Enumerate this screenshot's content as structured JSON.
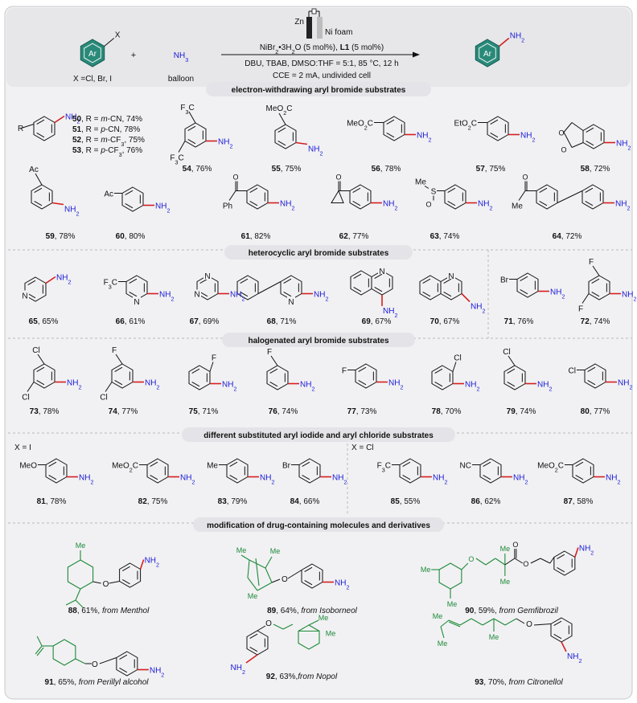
{
  "scheme": {
    "reactant": {
      "ring": "Ar",
      "substituent": "X",
      "note": "X =Cl, Br, I"
    },
    "plus": "+",
    "reagent": {
      "formula": "NH3",
      "note": "balloon"
    },
    "electrodes": {
      "anode": "Zn",
      "cathode": "Ni foam"
    },
    "conditions": [
      "NiBr2•3H2O (5 mol%), L1 (5 mol%)",
      "DBU, TBAB, DMSO:THF = 5:1, 85 °C, 12 h",
      "CCE = 2 mA, undivided cell"
    ],
    "product": {
      "ring": "Ar",
      "group": "NH2"
    }
  },
  "sections": [
    {
      "id": "ewg",
      "title": "electron-withdrawing aryl bromide substrates"
    },
    {
      "id": "het",
      "title": "heterocyclic aryl bromide substrates"
    },
    {
      "id": "hal",
      "title": "halogenated aryl bromide substrates"
    },
    {
      "id": "icl",
      "title": "different substituted aryl iodide and aryl chloride substrates"
    },
    {
      "id": "drug",
      "title": "modification of drug-containing molecules and derivatives"
    }
  ],
  "series_50_53": [
    {
      "num": "50",
      "r": "m-CN",
      "yield": "74%"
    },
    {
      "num": "51",
      "r": "p-CN",
      "yield": "78%"
    },
    {
      "num": "52",
      "r": "m-CF3",
      "yield": "75%"
    },
    {
      "num": "53",
      "r": "p-CF3",
      "yield": "76%"
    }
  ],
  "compounds": [
    {
      "num": "54",
      "yield": "76%",
      "subs": [
        "F3C",
        "F3C"
      ]
    },
    {
      "num": "55",
      "yield": "75%",
      "subs": [
        "MeO2C"
      ]
    },
    {
      "num": "56",
      "yield": "78%",
      "subs": [
        "MeO2C"
      ]
    },
    {
      "num": "57",
      "yield": "75%",
      "subs": [
        "EtO2C"
      ]
    },
    {
      "num": "58",
      "yield": "72%",
      "subs": [
        "O"
      ]
    },
    {
      "num": "59",
      "yield": "78%",
      "subs": [
        "Ac"
      ]
    },
    {
      "num": "60",
      "yield": "80%",
      "subs": [
        "Ac"
      ]
    },
    {
      "num": "61",
      "yield": "82%",
      "subs": [
        "O",
        "Ph"
      ]
    },
    {
      "num": "62",
      "yield": "77%",
      "subs": [
        "O"
      ]
    },
    {
      "num": "63",
      "yield": "74%",
      "subs": [
        "Me",
        "S",
        "O",
        "O"
      ]
    },
    {
      "num": "64",
      "yield": "72%",
      "subs": [
        "O",
        "Me"
      ]
    },
    {
      "num": "65",
      "yield": "65%",
      "subs": [
        "N"
      ]
    },
    {
      "num": "66",
      "yield": "61%",
      "subs": [
        "F3C",
        "N"
      ]
    },
    {
      "num": "67",
      "yield": "69%",
      "subs": [
        "N",
        "N"
      ]
    },
    {
      "num": "68",
      "yield": "71%",
      "subs": [
        "N"
      ]
    },
    {
      "num": "69",
      "yield": "67%",
      "subs": [
        "N"
      ]
    },
    {
      "num": "70",
      "yield": "67%",
      "subs": [
        "N"
      ]
    },
    {
      "num": "71",
      "yield": "76%",
      "subs": [
        "Br"
      ]
    },
    {
      "num": "72",
      "yield": "74%",
      "subs": [
        "F",
        "F"
      ]
    },
    {
      "num": "73",
      "yield": "78%",
      "subs": [
        "Cl",
        "Cl"
      ]
    },
    {
      "num": "74",
      "yield": "77%",
      "subs": [
        "F",
        "Cl"
      ]
    },
    {
      "num": "75",
      "yield": "71%",
      "subs": [
        "F"
      ]
    },
    {
      "num": "76",
      "yield": "74%",
      "subs": [
        "F"
      ]
    },
    {
      "num": "77",
      "yield": "73%",
      "subs": [
        "F"
      ]
    },
    {
      "num": "78",
      "yield": "70%",
      "subs": [
        "Cl"
      ]
    },
    {
      "num": "79",
      "yield": "74%",
      "subs": [
        "Cl"
      ]
    },
    {
      "num": "80",
      "yield": "77%",
      "subs": [
        "Cl"
      ]
    },
    {
      "num": "81",
      "yield": "78%",
      "subs": [
        "MeO"
      ]
    },
    {
      "num": "82",
      "yield": "75%",
      "subs": [
        "MeO2C"
      ]
    },
    {
      "num": "83",
      "yield": "79%",
      "subs": [
        "Me"
      ]
    },
    {
      "num": "84",
      "yield": "66%",
      "subs": [
        "Br"
      ]
    },
    {
      "num": "85",
      "yield": "55%",
      "subs": [
        "F3C"
      ]
    },
    {
      "num": "86",
      "yield": "62%",
      "subs": [
        "NC"
      ]
    },
    {
      "num": "87",
      "yield": "58%",
      "subs": [
        "MeO2C"
      ]
    }
  ],
  "halide_labels": {
    "iodide": "X = I",
    "chloride": "X = Cl"
  },
  "drugs": [
    {
      "num": "88",
      "yield": "61%",
      "source": "from Menthol",
      "subs": [
        "Me",
        "O"
      ]
    },
    {
      "num": "89",
      "yield": "64%",
      "source": "from Isoborneol",
      "subs": [
        "Me",
        "Me",
        "Me",
        "O"
      ]
    },
    {
      "num": "90",
      "yield": "59%",
      "source": "from Gemfibrozil",
      "subs": [
        "Me",
        "Me",
        "O",
        "Me",
        "Me",
        "O",
        "O"
      ]
    },
    {
      "num": "91",
      "yield": "65%",
      "source": "from Perillyl alcohol",
      "subs": [
        "O"
      ]
    },
    {
      "num": "92",
      "yield": "63%,",
      "source": "from Nopol",
      "subs": [
        "O",
        "Me",
        "Me"
      ]
    },
    {
      "num": "93",
      "yield": "70%",
      "source": "from Citronellol",
      "subs": [
        "Me",
        "Me",
        "O"
      ]
    }
  ],
  "common": {
    "amine": "NH2"
  },
  "colors": {
    "ring_teal": "#2a8a7a",
    "amine_blue": "#1a1ad8",
    "drug_green": "#1f8a3a",
    "bond_red": "#d42020",
    "panel": "#f1f1f3",
    "header_box": "#e7e7ea"
  }
}
